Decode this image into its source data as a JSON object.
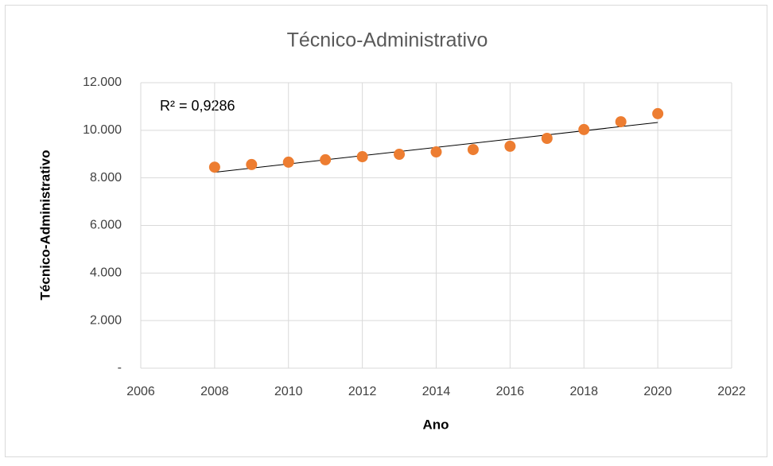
{
  "chart_data": {
    "type": "scatter",
    "title": "Técnico-Administrativo",
    "x_label": "Ano",
    "y_label": "Técnico-Administrativo",
    "annotation": "R² = 0,9286",
    "trendline": true,
    "color": "#ed7d31",
    "x": [
      2008,
      2009,
      2010,
      2011,
      2012,
      2013,
      2014,
      2015,
      2016,
      2017,
      2018,
      2019,
      2020
    ],
    "values": [
      8450,
      8560,
      8660,
      8760,
      8890,
      8990,
      9090,
      9190,
      9330,
      9660,
      10030,
      10360,
      10700
    ],
    "xlim": [
      2006,
      2022
    ],
    "xticks": [
      2006,
      2008,
      2010,
      2012,
      2014,
      2016,
      2018,
      2020,
      2022
    ],
    "ylim": [
      0,
      12000
    ],
    "yticks": [
      {
        "value": 0,
        "label": "-"
      },
      {
        "value": 2000,
        "label": "2.000"
      },
      {
        "value": 4000,
        "label": "4.000"
      },
      {
        "value": 6000,
        "label": "6.000"
      },
      {
        "value": 8000,
        "label": "8.000"
      },
      {
        "value": 10000,
        "label": "10.000"
      },
      {
        "value": 12000,
        "label": "12.000"
      }
    ],
    "grid": true
  }
}
